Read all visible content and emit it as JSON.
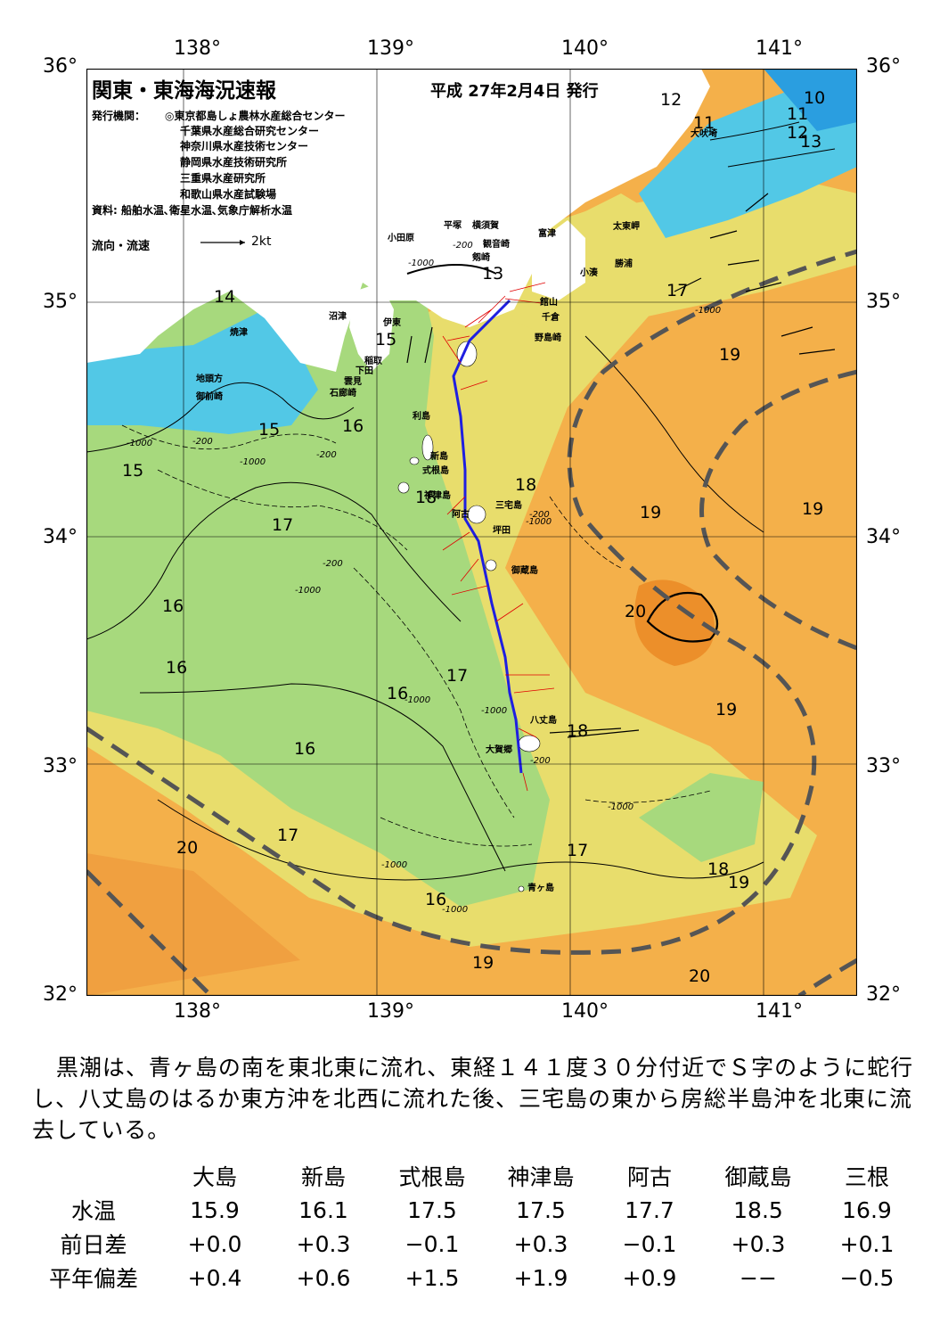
{
  "map": {
    "title": "関東・東海海況速報",
    "issue_date": "平成 27年2月4日 発行",
    "issuer_label": "発行機関：",
    "issuers": [
      "◎東京都島しょ農林水産総合センター",
      "千葉県水産総合研究センター",
      "神奈川県水産技術センター",
      "静岡県水産技術研究所",
      "三重県水産研究所",
      "和歌山県水産試験場"
    ],
    "source": "資料: 船舶水温､衛星水温､気象庁解析水温",
    "current_legend_label": "流向・流速",
    "current_legend_scale": "2kt",
    "lon_ticks": [
      "138°",
      "139°",
      "140°",
      "141°"
    ],
    "lat_ticks": [
      "36°",
      "35°",
      "34°",
      "33°",
      "32°"
    ],
    "places": [
      "小田原",
      "平塚",
      "横須賀",
      "観音崎",
      "富津",
      "剱崎",
      "太東岬",
      "勝浦",
      "小湊",
      "千倉",
      "館山",
      "野島崎",
      "大吠埼",
      "沼津",
      "伊東",
      "焼津",
      "稲取",
      "下田",
      "雲見",
      "石廊崎",
      "地頭方",
      "御前崎",
      "利島",
      "新島",
      "式根島",
      "神津島",
      "三宅島",
      "坪田",
      "阿古",
      "御蔵島",
      "八丈島",
      "大賀郷",
      "青ヶ島"
    ],
    "isotherm_labels": [
      "10",
      "11",
      "11",
      "12",
      "12",
      "13",
      "13",
      "13",
      "14",
      "15",
      "15",
      "15",
      "16",
      "16",
      "16",
      "16",
      "16",
      "16",
      "17",
      "17",
      "17",
      "17",
      "17",
      "17",
      "18",
      "18",
      "18",
      "18",
      "19",
      "19",
      "19",
      "19",
      "19",
      "19",
      "20",
      "20",
      "20"
    ],
    "depth_labels": [
      "-200",
      "-200",
      "-200",
      "-200",
      "-1000",
      "-1000",
      "-1000",
      "-1000",
      "-1000",
      "-1000",
      "-1000",
      "-1000",
      "-1000",
      "-1000",
      "-1000",
      "-200",
      "-200"
    ],
    "colors": {
      "cold": "#3ab4ea",
      "cool": "#8ed98a",
      "mild": "#e6e070",
      "warm": "#f4b04a",
      "hot": "#ec8f2a",
      "kuroshio": "#555555",
      "track": "#1f1fe0",
      "vectors": "#e00000"
    }
  },
  "summary": "黒潮は、青ヶ島の南を東北東に流れ、東経１４１度３０分付近でＳ字のように蛇行し、八丈島のはるか東方沖を北西に流れた後、三宅島の東から房総半島沖を北東に流去している。",
  "table": {
    "columns": [
      "大島",
      "新島",
      "式根島",
      "神津島",
      "阿古",
      "御蔵島",
      "三根"
    ],
    "rows": [
      {
        "label": "水温",
        "values": [
          "15.9",
          "16.1",
          "17.5",
          "17.5",
          "17.7",
          "18.5",
          "16.9"
        ]
      },
      {
        "label": "前日差",
        "values": [
          "+0.0",
          "+0.3",
          "−0.1",
          "+0.3",
          "−0.1",
          "+0.3",
          "+0.1"
        ]
      },
      {
        "label": "平年偏差",
        "values": [
          "+0.4",
          "+0.6",
          "+1.5",
          "+1.9",
          "+0.9",
          "−−",
          "−0.5"
        ]
      }
    ]
  }
}
